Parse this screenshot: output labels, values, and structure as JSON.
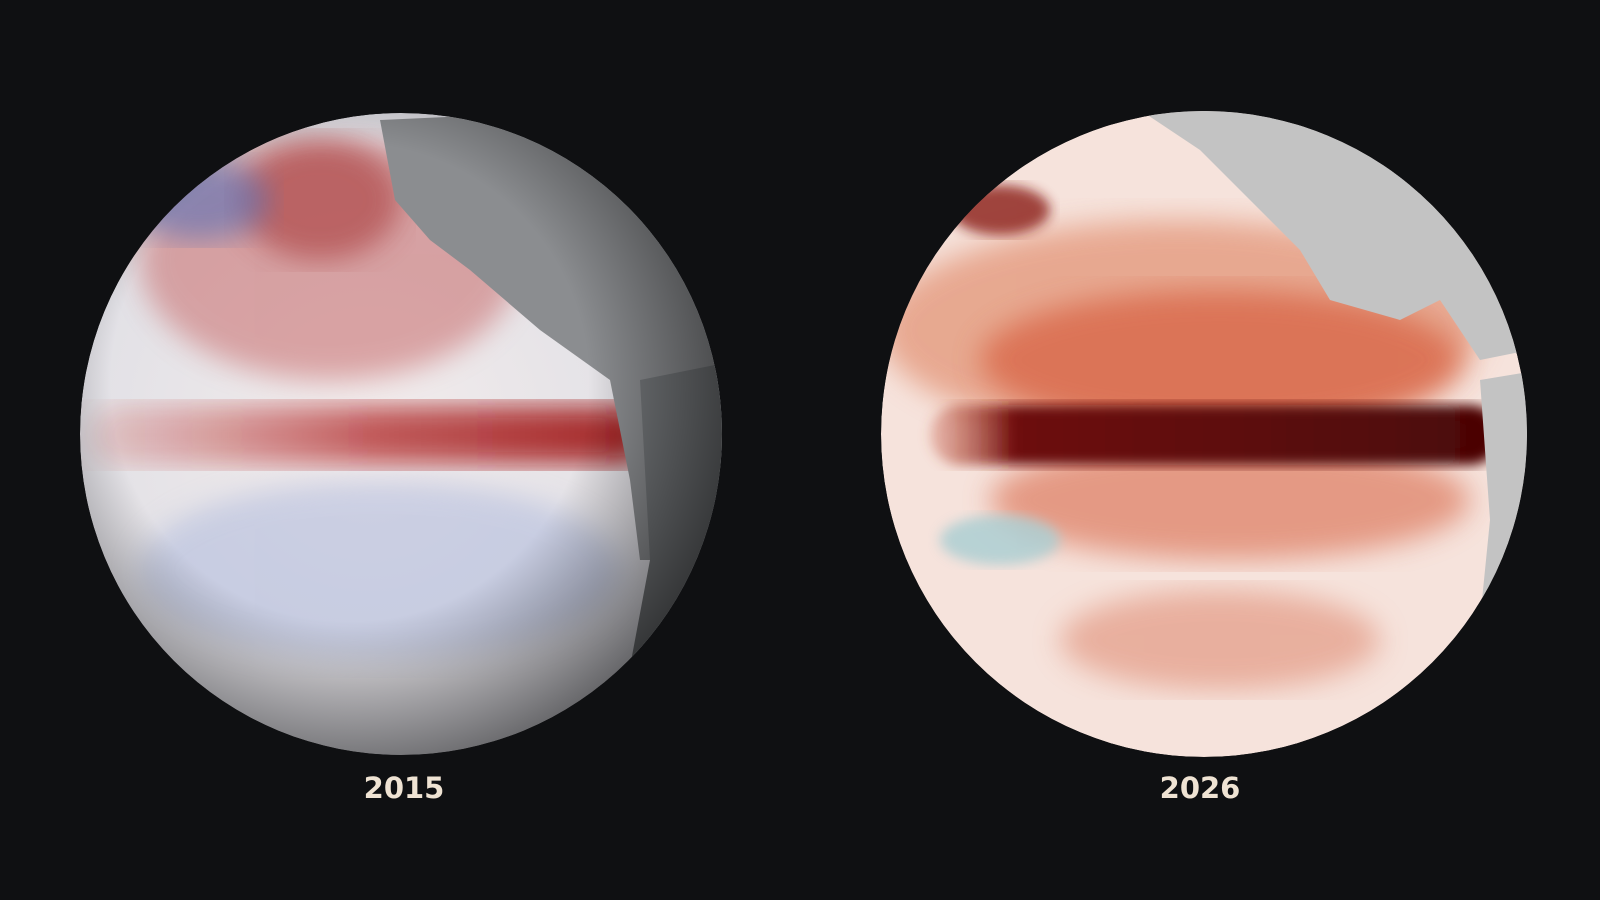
{
  "panels": [
    {
      "label": "2015"
    },
    {
      "label": "2026"
    }
  ]
}
